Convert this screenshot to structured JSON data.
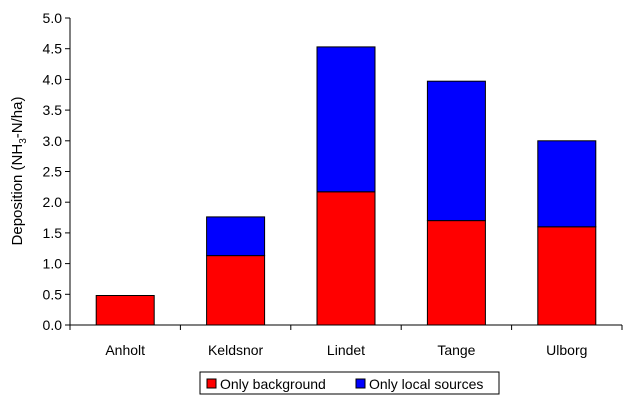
{
  "chart_data": {
    "type": "bar",
    "stacked": true,
    "ylabel_main": "Deposition (NH",
    "ylabel_sub": "3",
    "ylabel_tail": "-N/ha)",
    "ylim": [
      0,
      5
    ],
    "ytick_step": 0.5,
    "ytick_labels": [
      "0.0",
      "0.5",
      "1.0",
      "1.5",
      "2.0",
      "2.5",
      "3.0",
      "3.5",
      "4.0",
      "4.5",
      "5.0"
    ],
    "grid": false,
    "legend_position": "bottom",
    "categories": [
      "Anholt",
      "Keldsnor",
      "Lindet",
      "Tange",
      "Ulborg"
    ],
    "series": [
      {
        "name": "Only background",
        "color": "#ff0000",
        "values": [
          0.48,
          1.13,
          2.17,
          1.7,
          1.6
        ]
      },
      {
        "name": "Only local sources",
        "color": "#0000ff",
        "values": [
          0.0,
          0.63,
          2.36,
          2.27,
          1.4
        ]
      }
    ]
  }
}
